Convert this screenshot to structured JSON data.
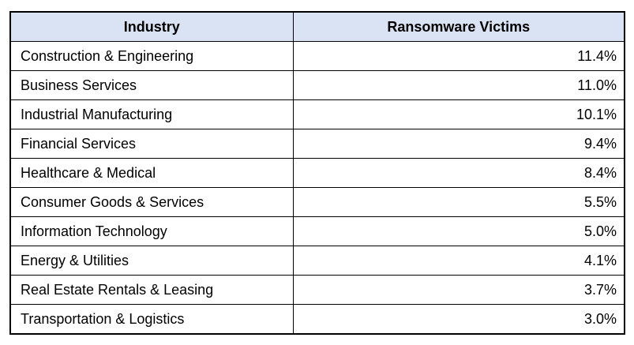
{
  "colors": {
    "header_background": "#DAE3F3",
    "border": "#000000",
    "text": "#000000",
    "row_background": "#FFFFFF"
  },
  "table": {
    "columns": [
      "Industry",
      "Ransomware Victims"
    ],
    "rows": [
      [
        "Construction & Engineering",
        "11.4%"
      ],
      [
        "Business Services",
        "11.0%"
      ],
      [
        "Industrial Manufacturing",
        "10.1%"
      ],
      [
        "Financial Services",
        "9.4%"
      ],
      [
        "Healthcare & Medical",
        "8.4%"
      ],
      [
        "Consumer Goods & Services",
        "5.5%"
      ],
      [
        "Information Technology",
        "5.0%"
      ],
      [
        "Energy & Utilities",
        "4.1%"
      ],
      [
        "Real Estate Rentals & Leasing",
        "3.7%"
      ],
      [
        "Transportation & Logistics",
        "3.0%"
      ]
    ]
  },
  "chart_data": {
    "type": "table",
    "title": "",
    "columns": [
      "Industry",
      "Ransomware Victims"
    ],
    "categories": [
      "Construction & Engineering",
      "Business Services",
      "Industrial Manufacturing",
      "Financial Services",
      "Healthcare & Medical",
      "Consumer Goods & Services",
      "Information Technology",
      "Energy & Utilities",
      "Real Estate Rentals & Leasing",
      "Transportation & Logistics"
    ],
    "values": [
      11.4,
      11.0,
      10.1,
      9.4,
      8.4,
      5.5,
      5.0,
      4.1,
      3.7,
      3.0
    ],
    "unit": "%",
    "layout": {
      "header_style": "bold centered, light blue fill",
      "value_alignment": "right",
      "category_alignment": "left",
      "grid": "all borders black, thick outer border"
    }
  }
}
